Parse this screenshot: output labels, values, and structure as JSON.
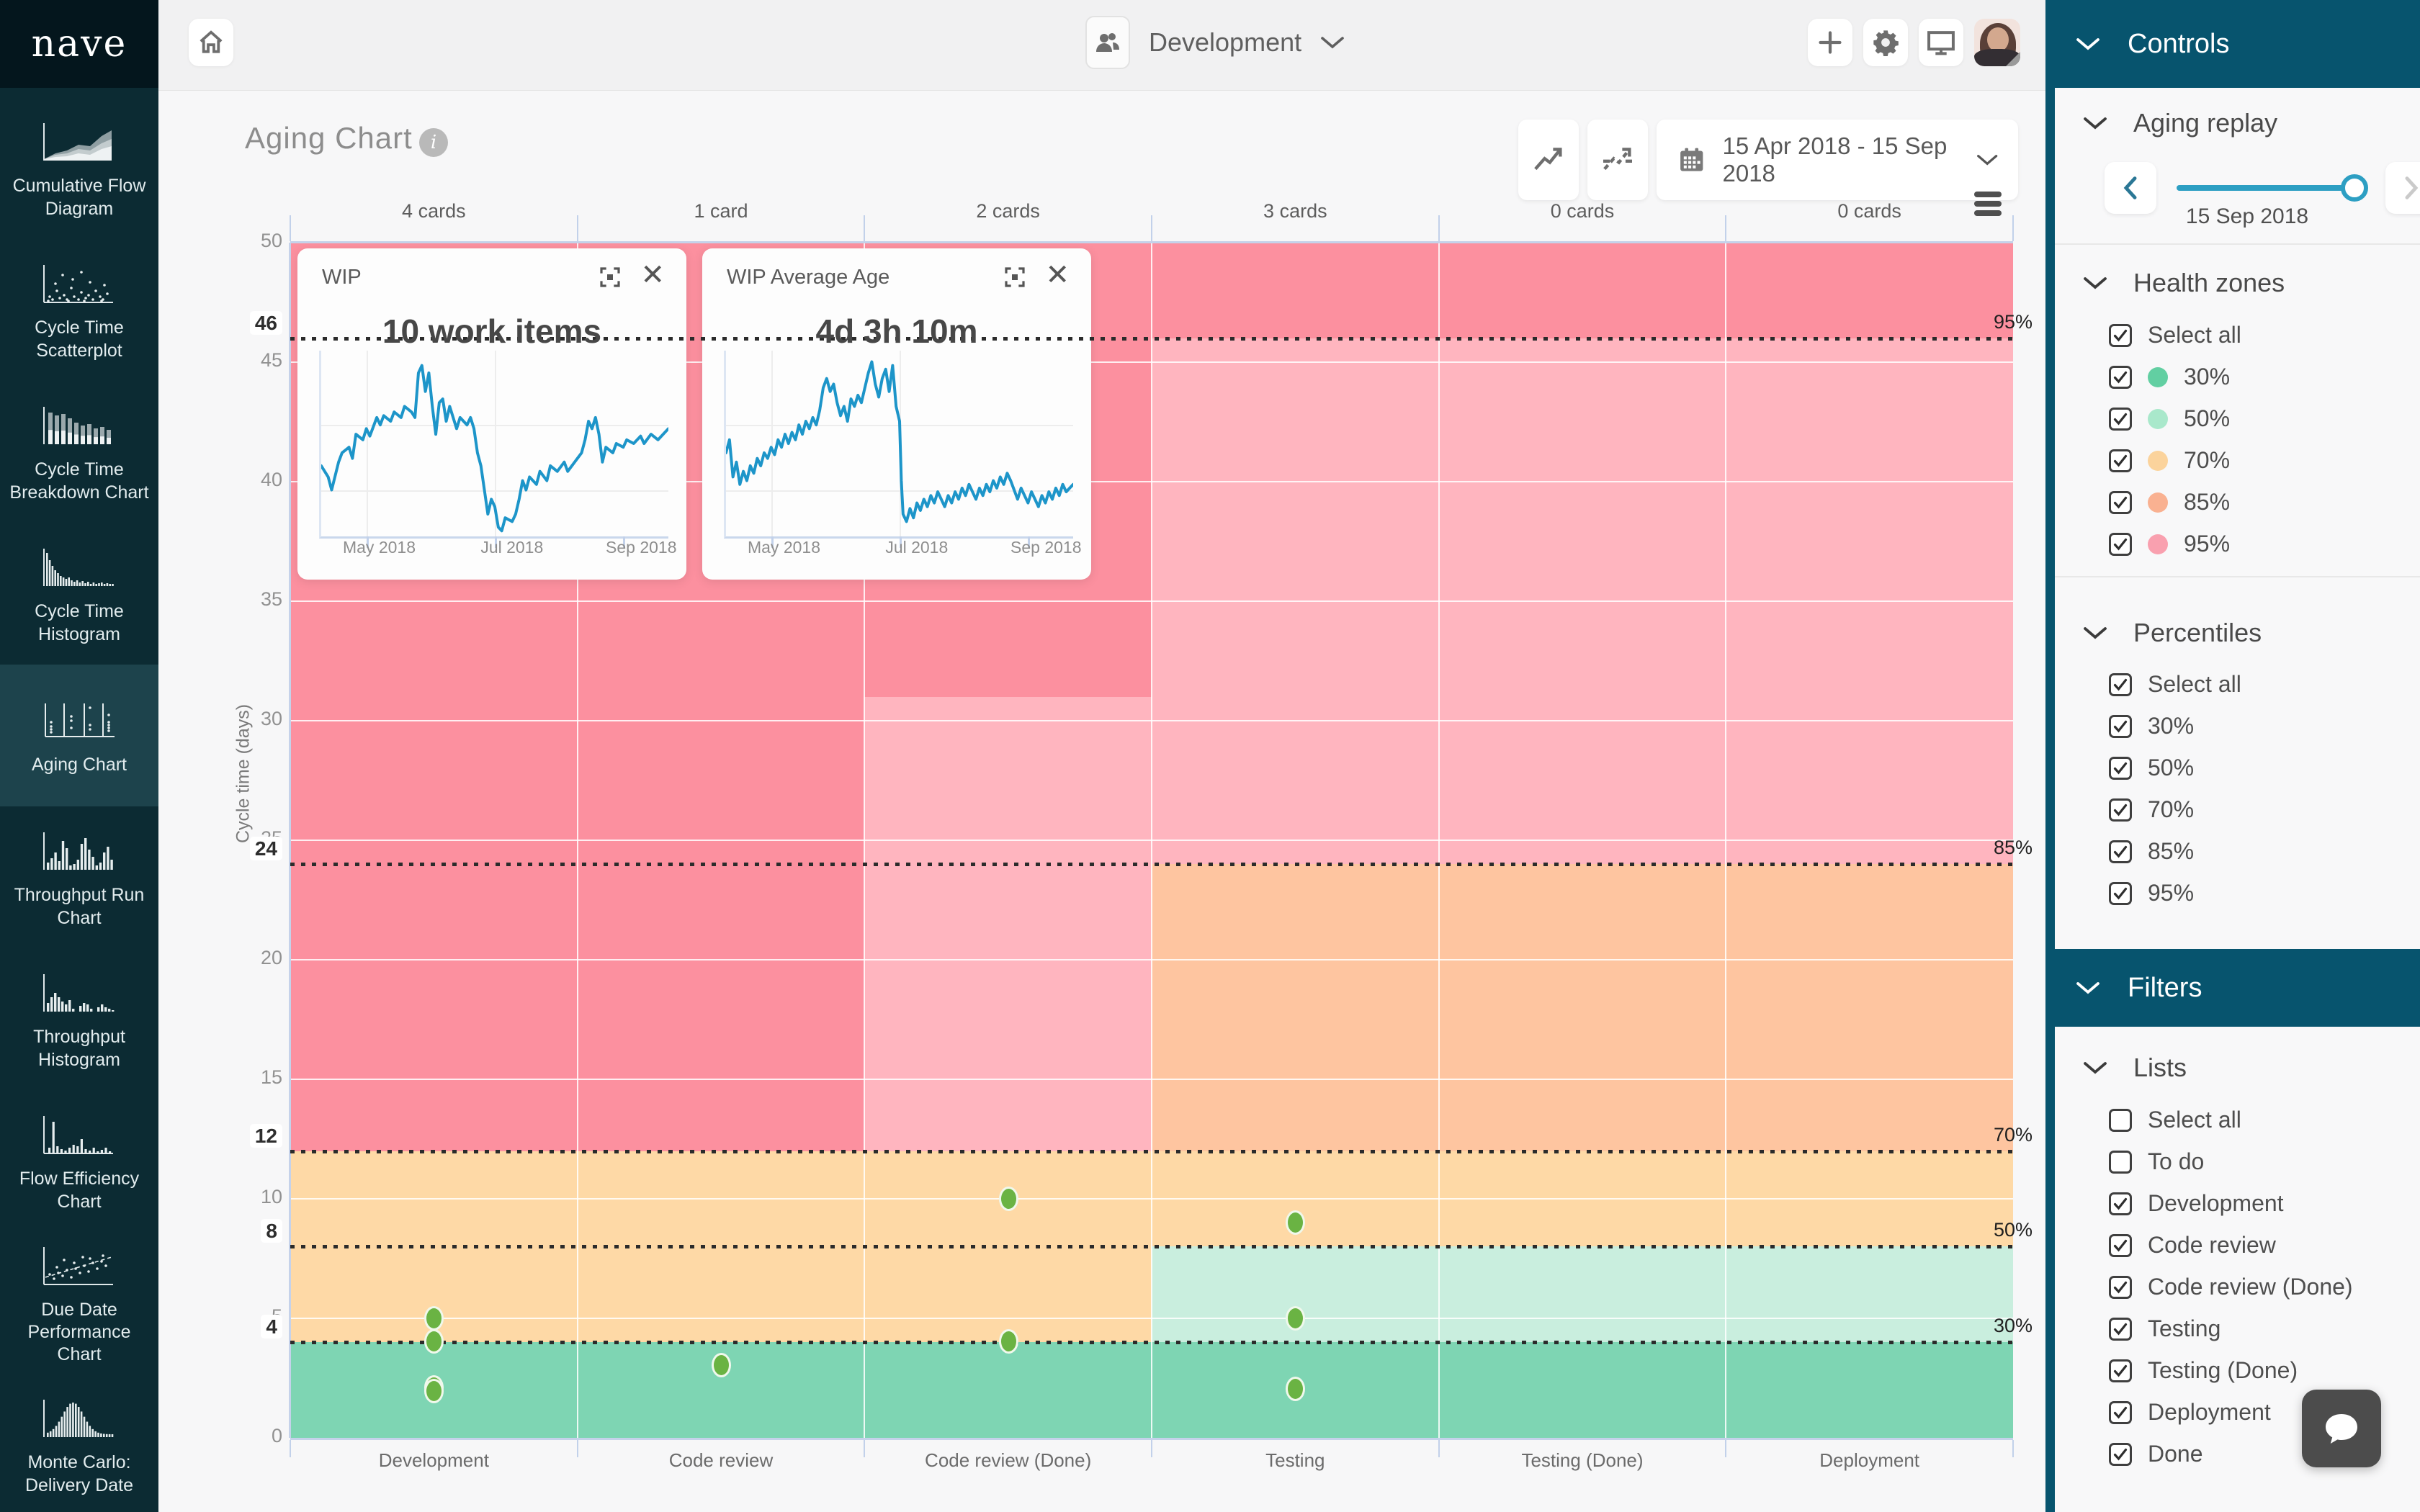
{
  "brand": {
    "logo_text": "nave"
  },
  "topbar": {
    "board_name": "Development",
    "icons": [
      "home-icon",
      "people-icon",
      "plus-icon",
      "gear-icon",
      "monitor-icon",
      "avatar"
    ]
  },
  "sidebar": {
    "selected_index": 4,
    "items": [
      {
        "label": "Cumulative Flow Diagram",
        "icon": "cumulative-flow-icon"
      },
      {
        "label": "Cycle Time Scatterplot",
        "icon": "cycle-time-scatterplot-icon"
      },
      {
        "label": "Cycle Time Breakdown Chart",
        "icon": "cycle-time-breakdown-icon"
      },
      {
        "label": "Cycle Time Histogram",
        "icon": "cycle-time-histogram-icon"
      },
      {
        "label": "Aging Chart",
        "icon": "aging-chart-icon"
      },
      {
        "label": "Throughput Run Chart",
        "icon": "throughput-run-icon"
      },
      {
        "label": "Throughput Histogram",
        "icon": "throughput-histogram-icon"
      },
      {
        "label": "Flow Efficiency Chart",
        "icon": "flow-efficiency-icon"
      },
      {
        "label": "Due Date Performance Chart",
        "icon": "due-date-performance-icon"
      },
      {
        "label": "Monte Carlo: Delivery Date",
        "icon": "monte-carlo-icon"
      }
    ]
  },
  "chart_header": {
    "title": "Aging Chart",
    "date_range": "15 Apr 2018 - 15 Sep 2018"
  },
  "chart_data": {
    "type": "scatter",
    "title": "Aging Chart",
    "ylabel": "Cycle time (days)",
    "ylim": [
      0,
      50
    ],
    "yticks": [
      0,
      5,
      10,
      15,
      20,
      25,
      30,
      35,
      40,
      45,
      50
    ],
    "bold_yticks": [
      4,
      8,
      12,
      24,
      46
    ],
    "percentile_lines": [
      {
        "label": "95%",
        "day": 46
      },
      {
        "label": "85%",
        "day": 24
      },
      {
        "label": "70%",
        "day": 12
      },
      {
        "label": "50%",
        "day": 8
      },
      {
        "label": "30%",
        "day": 4
      }
    ],
    "zone_colors": {
      "green": "#7ed5b3",
      "mint": "#c9eede",
      "lightOrange": "#fed9a6",
      "peach": "#fec5a0",
      "lightPink": "#ffb5bf",
      "darkPink": "#fc909f"
    },
    "dot_color": "#6ab343",
    "columns": [
      {
        "name": "Development",
        "cards_label": "4 cards",
        "dots_days": [
          5.0,
          4.05,
          2.1,
          1.95
        ],
        "zones": [
          [
            0,
            4,
            "green"
          ],
          [
            4,
            12,
            "lightOrange"
          ],
          [
            12,
            50,
            "darkPink"
          ]
        ]
      },
      {
        "name": "Code review",
        "cards_label": "1 card",
        "dots_days": [
          3.05
        ],
        "zones": [
          [
            0,
            4,
            "green"
          ],
          [
            4,
            12,
            "lightOrange"
          ],
          [
            12,
            50,
            "darkPink"
          ]
        ]
      },
      {
        "name": "Code review (Done)",
        "cards_label": "2 cards",
        "dots_days": [
          10.0,
          4.05
        ],
        "zones": [
          [
            0,
            4,
            "green"
          ],
          [
            4,
            12,
            "lightOrange"
          ],
          [
            12,
            31,
            "lightPink"
          ],
          [
            31,
            50,
            "darkPink"
          ]
        ]
      },
      {
        "name": "Testing",
        "cards_label": "3 cards",
        "dots_days": [
          9.0,
          5.0,
          2.05
        ],
        "zones": [
          [
            0,
            4,
            "green"
          ],
          [
            4,
            8,
            "mint"
          ],
          [
            8,
            12,
            "lightOrange"
          ],
          [
            12,
            24,
            "peach"
          ],
          [
            24,
            46,
            "lightPink"
          ],
          [
            46,
            50,
            "darkPink"
          ]
        ]
      },
      {
        "name": "Testing (Done)",
        "cards_label": "0 cards",
        "dots_days": [],
        "zones": [
          [
            0,
            4,
            "green"
          ],
          [
            4,
            8,
            "mint"
          ],
          [
            8,
            12,
            "lightOrange"
          ],
          [
            12,
            24,
            "peach"
          ],
          [
            24,
            46,
            "lightPink"
          ],
          [
            46,
            50,
            "darkPink"
          ]
        ]
      },
      {
        "name": "Deployment",
        "cards_label": "0 cards",
        "dots_days": [],
        "zones": [
          [
            0,
            4,
            "green"
          ],
          [
            4,
            8,
            "mint"
          ],
          [
            8,
            12,
            "lightOrange"
          ],
          [
            12,
            24,
            "peach"
          ],
          [
            24,
            46,
            "lightPink"
          ],
          [
            46,
            50,
            "darkPink"
          ]
        ]
      }
    ]
  },
  "wip_cards": [
    {
      "title": "WIP",
      "value": "10 work items",
      "x_labels": [
        "May 2018",
        "Jul 2018",
        "Sep 2018"
      ],
      "line_color": "#1d95c9",
      "series": [
        [
          0,
          62
        ],
        [
          2,
          68
        ],
        [
          3,
          75
        ],
        [
          5,
          60
        ],
        [
          6,
          55
        ],
        [
          8,
          52
        ],
        [
          9,
          58
        ],
        [
          10,
          45
        ],
        [
          12,
          48
        ],
        [
          13,
          42
        ],
        [
          14,
          46
        ],
        [
          16,
          36
        ],
        [
          17,
          40
        ],
        [
          18,
          35
        ],
        [
          20,
          38
        ],
        [
          21,
          33
        ],
        [
          23,
          36
        ],
        [
          24,
          30
        ],
        [
          26,
          33
        ],
        [
          27,
          36
        ],
        [
          28,
          12
        ],
        [
          29,
          8
        ],
        [
          30,
          22
        ],
        [
          31,
          12
        ],
        [
          32,
          30
        ],
        [
          33,
          45
        ],
        [
          34,
          28
        ],
        [
          35,
          26
        ],
        [
          36,
          38
        ],
        [
          37,
          30
        ],
        [
          38,
          36
        ],
        [
          39,
          42
        ],
        [
          40,
          36
        ],
        [
          42,
          40
        ],
        [
          43,
          36
        ],
        [
          44,
          42
        ],
        [
          45,
          55
        ],
        [
          46,
          62
        ],
        [
          47,
          75
        ],
        [
          48,
          88
        ],
        [
          49,
          80
        ],
        [
          50,
          84
        ],
        [
          51,
          95
        ],
        [
          52,
          97
        ],
        [
          53,
          90
        ],
        [
          55,
          92
        ],
        [
          56,
          88
        ],
        [
          57,
          80
        ],
        [
          58,
          70
        ],
        [
          59,
          75
        ],
        [
          60,
          68
        ],
        [
          62,
          72
        ],
        [
          63,
          65
        ],
        [
          65,
          70
        ],
        [
          66,
          62
        ],
        [
          68,
          65
        ],
        [
          70,
          60
        ],
        [
          71,
          65
        ],
        [
          73,
          60
        ],
        [
          75,
          55
        ],
        [
          76,
          48
        ],
        [
          77,
          38
        ],
        [
          78,
          42
        ],
        [
          79,
          36
        ],
        [
          80,
          45
        ],
        [
          81,
          60
        ],
        [
          82,
          52
        ],
        [
          84,
          55
        ],
        [
          85,
          50
        ],
        [
          87,
          52
        ],
        [
          88,
          48
        ],
        [
          90,
          50
        ],
        [
          92,
          46
        ],
        [
          93,
          50
        ],
        [
          95,
          45
        ],
        [
          97,
          48
        ],
        [
          100,
          42
        ]
      ]
    },
    {
      "title": "WIP Average Age",
      "value": "4d 3h 10m",
      "x_labels": [
        "May 2018",
        "Jul 2018",
        "Sep 2018"
      ],
      "line_color": "#1d95c9",
      "series": [
        [
          0,
          55
        ],
        [
          1,
          48
        ],
        [
          2,
          68
        ],
        [
          3,
          60
        ],
        [
          4,
          72
        ],
        [
          5,
          65
        ],
        [
          6,
          70
        ],
        [
          7,
          62
        ],
        [
          8,
          66
        ],
        [
          9,
          58
        ],
        [
          10,
          62
        ],
        [
          11,
          55
        ],
        [
          12,
          58
        ],
        [
          13,
          52
        ],
        [
          14,
          56
        ],
        [
          15,
          48
        ],
        [
          16,
          52
        ],
        [
          17,
          45
        ],
        [
          18,
          50
        ],
        [
          19,
          44
        ],
        [
          20,
          48
        ],
        [
          21,
          40
        ],
        [
          22,
          45
        ],
        [
          23,
          38
        ],
        [
          24,
          42
        ],
        [
          25,
          36
        ],
        [
          26,
          40
        ],
        [
          27,
          32
        ],
        [
          28,
          20
        ],
        [
          29,
          15
        ],
        [
          30,
          22
        ],
        [
          31,
          18
        ],
        [
          32,
          28
        ],
        [
          33,
          35
        ],
        [
          34,
          30
        ],
        [
          35,
          38
        ],
        [
          36,
          26
        ],
        [
          37,
          30
        ],
        [
          38,
          24
        ],
        [
          39,
          28
        ],
        [
          40,
          20
        ],
        [
          41,
          12
        ],
        [
          42,
          6
        ],
        [
          43,
          18
        ],
        [
          44,
          25
        ],
        [
          45,
          15
        ],
        [
          46,
          10
        ],
        [
          47,
          22
        ],
        [
          48,
          8
        ],
        [
          49,
          30
        ],
        [
          50,
          38
        ],
        [
          50.5,
          70
        ],
        [
          51,
          88
        ],
        [
          52,
          92
        ],
        [
          53,
          85
        ],
        [
          54,
          90
        ],
        [
          55,
          82
        ],
        [
          56,
          86
        ],
        [
          57,
          80
        ],
        [
          58,
          84
        ],
        [
          59,
          78
        ],
        [
          60,
          82
        ],
        [
          61,
          76
        ],
        [
          62,
          80
        ],
        [
          63,
          84
        ],
        [
          64,
          78
        ],
        [
          65,
          82
        ],
        [
          66,
          76
        ],
        [
          67,
          80
        ],
        [
          68,
          74
        ],
        [
          69,
          78
        ],
        [
          70,
          72
        ],
        [
          71,
          76
        ],
        [
          72,
          80
        ],
        [
          73,
          74
        ],
        [
          74,
          78
        ],
        [
          75,
          72
        ],
        [
          76,
          76
        ],
        [
          77,
          70
        ],
        [
          78,
          74
        ],
        [
          79,
          68
        ],
        [
          80,
          72
        ],
        [
          81,
          66
        ],
        [
          82,
          70
        ],
        [
          83,
          75
        ],
        [
          84,
          80
        ],
        [
          85,
          74
        ],
        [
          86,
          78
        ],
        [
          87,
          82
        ],
        [
          88,
          76
        ],
        [
          89,
          80
        ],
        [
          90,
          84
        ],
        [
          91,
          78
        ],
        [
          92,
          82
        ],
        [
          93,
          76
        ],
        [
          94,
          80
        ],
        [
          95,
          74
        ],
        [
          96,
          78
        ],
        [
          97,
          72
        ],
        [
          98,
          76
        ],
        [
          99,
          74
        ],
        [
          100,
          72
        ]
      ]
    }
  ],
  "controls_panel": {
    "header": "Controls",
    "aging_replay": {
      "title": "Aging replay",
      "current_date": "15 Sep 2018",
      "slider_position_pct": 93
    },
    "health_zones": {
      "title": "Health zones",
      "rows": [
        {
          "label": "Select all",
          "checked": true
        },
        {
          "label": "30%",
          "checked": true,
          "dot": "#62cfa2"
        },
        {
          "label": "50%",
          "checked": true,
          "dot": "#a9e8cb"
        },
        {
          "label": "70%",
          "checked": true,
          "dot": "#fbd39c"
        },
        {
          "label": "85%",
          "checked": true,
          "dot": "#f9b191"
        },
        {
          "label": "95%",
          "checked": true,
          "dot": "#f9a0af"
        }
      ]
    },
    "percentiles": {
      "title": "Percentiles",
      "rows": [
        {
          "label": "Select all",
          "checked": true
        },
        {
          "label": "30%",
          "checked": true
        },
        {
          "label": "50%",
          "checked": true
        },
        {
          "label": "70%",
          "checked": true
        },
        {
          "label": "85%",
          "checked": true
        },
        {
          "label": "95%",
          "checked": true
        }
      ]
    },
    "filters_header": "Filters",
    "lists": {
      "title": "Lists",
      "rows": [
        {
          "label": "Select all",
          "checked": false
        },
        {
          "label": "To do",
          "checked": false
        },
        {
          "label": "Development",
          "checked": true
        },
        {
          "label": "Code review",
          "checked": true
        },
        {
          "label": "Code review (Done)",
          "checked": true
        },
        {
          "label": "Testing",
          "checked": true
        },
        {
          "label": "Testing (Done)",
          "checked": true
        },
        {
          "label": "Deployment",
          "checked": true
        },
        {
          "label": "Done",
          "checked": true
        }
      ]
    }
  }
}
